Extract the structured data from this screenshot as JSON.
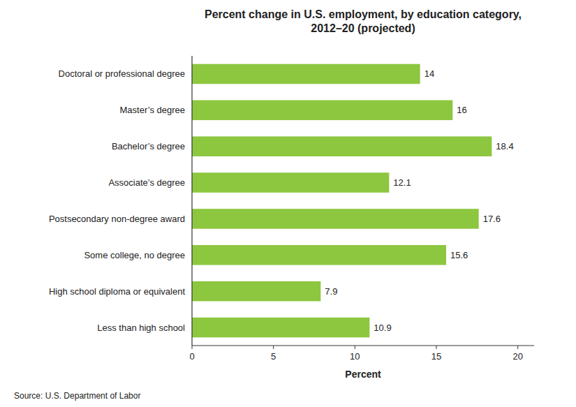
{
  "chart_data": {
    "type": "bar",
    "orientation": "horizontal",
    "title": "Percent change in U.S. employment, by education category,\n2012–20 (projected)",
    "categories": [
      "Doctoral or professional degree",
      "Master’s degree",
      "Bachelor’s degree",
      "Associate’s degree",
      "Postsecondary non-degree award",
      "Some college, no degree",
      "High school diploma or equivalent",
      "Less than high school"
    ],
    "values": [
      14,
      16,
      18.4,
      12.1,
      17.6,
      15.6,
      7.9,
      10.9
    ],
    "color": "#8dc63f",
    "xlabel": "Percent",
    "xlim": [
      0,
      21
    ],
    "xticks": [
      0,
      5,
      10,
      15,
      20
    ],
    "data_labels": true,
    "grid": false,
    "source": "Source: U.S. Department of Labor"
  }
}
